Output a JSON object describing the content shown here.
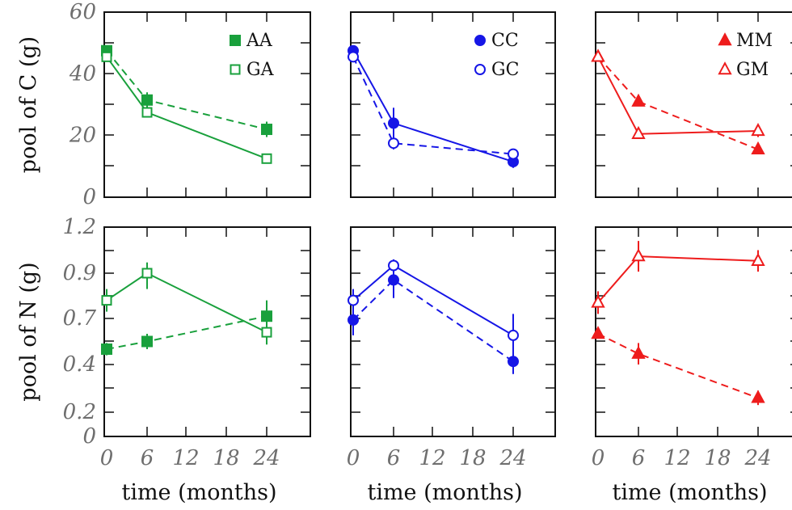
{
  "chart_data": [
    {
      "type": "line",
      "panel": "AA/GA carbon",
      "xlabel": "",
      "ylabel": "pool of C (g)",
      "x_ticks": [],
      "y_ticks": [
        "0",
        "20",
        "40",
        "60"
      ],
      "xlim": [
        0,
        30
      ],
      "ylim": [
        0,
        60
      ],
      "color": "#19a03c",
      "legend_position": "top-right",
      "series": [
        {
          "name": "AA",
          "marker": "square-filled",
          "linestyle": "dashed",
          "x": [
            0,
            6,
            24
          ],
          "y": [
            47.5,
            31.5,
            22.0
          ],
          "err": [
            1.5,
            2.5,
            2.5
          ]
        },
        {
          "name": "GA",
          "marker": "square-open",
          "linestyle": "solid",
          "x": [
            0,
            6,
            24
          ],
          "y": [
            45.5,
            27.5,
            12.5
          ],
          "err": [
            1.0,
            1.5,
            1.0
          ]
        }
      ]
    },
    {
      "type": "line",
      "panel": "CC/GC carbon",
      "xlabel": "",
      "ylabel": "",
      "x_ticks": [],
      "y_ticks": [],
      "xlim": [
        0,
        30
      ],
      "ylim": [
        0,
        60
      ],
      "color": "#1616e6",
      "legend_position": "top-right",
      "series": [
        {
          "name": "CC",
          "marker": "circle-filled",
          "linestyle": "solid",
          "x": [
            0,
            6,
            24
          ],
          "y": [
            47.5,
            24.0,
            11.5
          ],
          "err": [
            1.0,
            5.0,
            2.0
          ]
        },
        {
          "name": "GC",
          "marker": "circle-open",
          "linestyle": "dashed",
          "x": [
            0,
            6,
            24
          ],
          "y": [
            45.5,
            17.5,
            14.0
          ],
          "err": [
            1.0,
            2.0,
            1.0
          ]
        }
      ]
    },
    {
      "type": "line",
      "panel": "MM/GM carbon",
      "xlabel": "",
      "ylabel": "",
      "x_ticks": [],
      "y_ticks": [],
      "xlim": [
        0,
        30
      ],
      "ylim": [
        0,
        60
      ],
      "color": "#ee1c1c",
      "legend_position": "top-right",
      "series": [
        {
          "name": "MM",
          "marker": "triangle-filled",
          "linestyle": "dashed",
          "x": [
            0,
            6,
            24
          ],
          "y": [
            45.5,
            31.0,
            15.5
          ],
          "err": [
            0.8,
            1.0,
            1.0
          ]
        },
        {
          "name": "GM",
          "marker": "triangle-open",
          "linestyle": "solid",
          "x": [
            0,
            6,
            24
          ],
          "y": [
            45.5,
            20.5,
            21.5
          ],
          "err": [
            0.8,
            1.0,
            2.0
          ]
        }
      ]
    },
    {
      "type": "line",
      "panel": "AA/GA nitrogen",
      "xlabel": "time (months)",
      "ylabel": "pool of N (g)",
      "x_ticks": [
        "0",
        "6",
        "12",
        "18",
        "24"
      ],
      "y_ticks": [
        "0",
        "0.2",
        "0.4",
        "0.7",
        "0.9",
        "1.2"
      ],
      "xlim": [
        0,
        30
      ],
      "ylim": [
        0,
        1.2
      ],
      "color": "#19a03c",
      "series": [
        {
          "name": "AA",
          "marker": "square-filled",
          "linestyle": "dashed",
          "x": [
            0,
            6,
            24
          ],
          "y": [
            0.5,
            0.55,
            0.71
          ],
          "err": [
            0.04,
            0.05,
            0.07
          ]
        },
        {
          "name": "GA",
          "marker": "square-open",
          "linestyle": "solid",
          "x": [
            0,
            6,
            24
          ],
          "y": [
            0.78,
            0.9,
            0.61
          ],
          "err": [
            0.05,
            0.07,
            0.08
          ]
        }
      ]
    },
    {
      "type": "line",
      "panel": "CC/GC nitrogen",
      "xlabel": "time (months)",
      "ylabel": "",
      "x_ticks": [
        "0",
        "6",
        "12",
        "18",
        "24"
      ],
      "y_ticks": [],
      "xlim": [
        0,
        30
      ],
      "ylim": [
        0,
        1.2
      ],
      "color": "#1616e6",
      "series": [
        {
          "name": "CC",
          "marker": "circle-filled",
          "linestyle": "dashed",
          "x": [
            0,
            6,
            24
          ],
          "y": [
            0.69,
            0.87,
            0.42
          ],
          "err": [
            0.1,
            0.08,
            0.06
          ]
        },
        {
          "name": "GC",
          "marker": "circle-open",
          "linestyle": "solid",
          "x": [
            0,
            6,
            24
          ],
          "y": [
            0.78,
            0.95,
            0.59
          ],
          "err": [
            0.05,
            0.04,
            0.13
          ]
        }
      ]
    },
    {
      "type": "line",
      "panel": "MM/GM nitrogen",
      "xlabel": "time (months)",
      "ylabel": "",
      "x_ticks": [
        "0",
        "6",
        "12",
        "18",
        "24"
      ],
      "y_ticks": [],
      "xlim": [
        0,
        30
      ],
      "ylim": [
        0,
        1.2
      ],
      "color": "#ee1c1c",
      "series": [
        {
          "name": "MM",
          "marker": "triangle-filled",
          "linestyle": "dashed",
          "x": [
            0,
            6,
            24
          ],
          "y": [
            0.6,
            0.47,
            0.26
          ],
          "err": [
            0.02,
            0.07,
            0.03
          ]
        },
        {
          "name": "GM",
          "marker": "triangle-open",
          "linestyle": "solid",
          "x": [
            0,
            6,
            24
          ],
          "y": [
            0.77,
            1.01,
            0.98
          ],
          "err": [
            0.05,
            0.1,
            0.07
          ]
        }
      ]
    }
  ]
}
